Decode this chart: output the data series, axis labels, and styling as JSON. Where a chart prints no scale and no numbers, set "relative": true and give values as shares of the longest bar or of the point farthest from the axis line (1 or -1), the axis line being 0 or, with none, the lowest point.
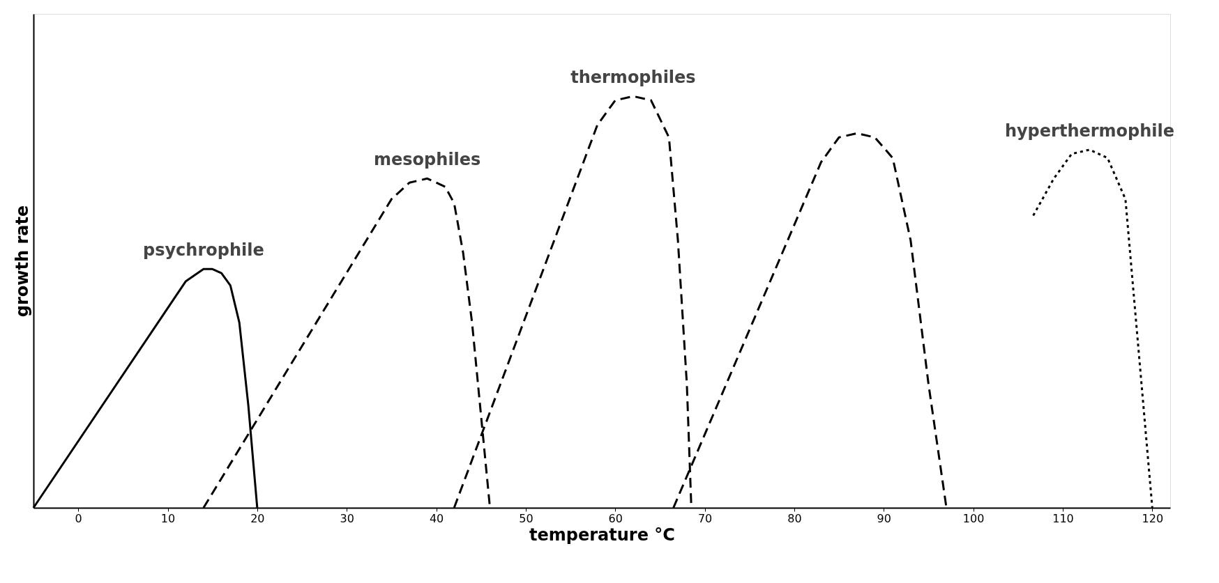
{
  "chart_data": {
    "type": "line",
    "relative": true,
    "xlabel": "temperature °C",
    "ylabel": "growth rate",
    "xlim": [
      -5,
      122
    ],
    "xticks": [
      0,
      10,
      20,
      30,
      40,
      50,
      60,
      70,
      80,
      90,
      100,
      110,
      120
    ],
    "grid": false,
    "marker": "none",
    "series": [
      {
        "name": "psychrophile",
        "color": "#000000",
        "line_style": "solid",
        "x": [
          -5,
          12,
          14,
          15,
          16,
          17,
          18,
          19,
          20
        ],
        "values": [
          0,
          0.55,
          0.58,
          0.58,
          0.57,
          0.54,
          0.45,
          0.25,
          0
        ]
      },
      {
        "name": "mesophiles",
        "color": "#000000",
        "line_style": "dashed",
        "x": [
          14,
          35,
          37,
          39,
          41,
          42,
          43,
          44,
          46
        ],
        "values": [
          0,
          0.75,
          0.79,
          0.8,
          0.78,
          0.74,
          0.62,
          0.45,
          0
        ]
      },
      {
        "name": "thermophiles",
        "color": "#000000",
        "line_style": "dashed",
        "x": [
          42,
          58,
          60,
          62,
          64,
          66,
          67,
          68,
          68.5
        ],
        "values": [
          0,
          0.93,
          0.99,
          1,
          0.99,
          0.9,
          0.65,
          0.3,
          0
        ]
      },
      {
        "color": "#000000",
        "line_style": "dashed",
        "x": [
          66.5,
          83,
          85,
          87,
          89,
          91,
          93,
          95,
          97
        ],
        "values": [
          0,
          0.84,
          0.9,
          0.91,
          0.9,
          0.85,
          0.65,
          0.3,
          0
        ]
      },
      {
        "name": "hyperthermophile",
        "color": "#000000",
        "line_style": "dotted",
        "x": [
          106.7,
          109,
          111,
          113,
          115,
          117,
          118,
          119,
          120
        ],
        "values": [
          0.71,
          0.8,
          0.86,
          0.87,
          0.85,
          0.75,
          0.5,
          0.25,
          0
        ]
      }
    ]
  }
}
